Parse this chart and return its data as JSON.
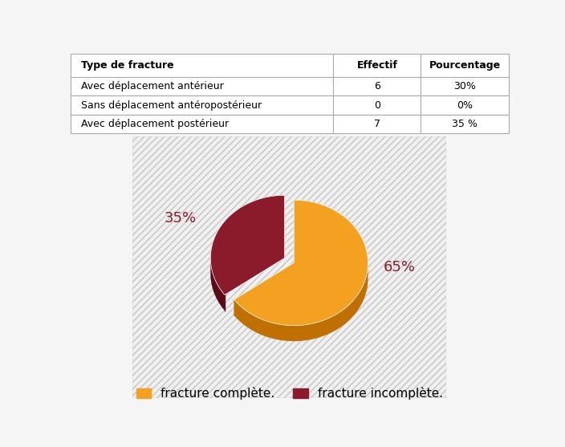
{
  "table": {
    "headers": [
      "Type de fracture",
      "Effectif",
      "Pourcentage"
    ],
    "rows": [
      [
        "Avec déplacement antérieur",
        "6",
        "30%"
      ],
      [
        "Sans déplacement antéropostérieur",
        "0",
        "0%"
      ],
      [
        "Avec déplacement postérieur",
        "7",
        "35 %"
      ]
    ]
  },
  "pie": {
    "values": [
      65,
      35
    ],
    "labels": [
      "fracture complète.",
      "fracture incomplète."
    ],
    "colors": [
      "#F4A020",
      "#8B1A2A"
    ],
    "dark_colors": [
      "#C07000",
      "#5A0A18"
    ],
    "explode_vec": [
      0.0,
      0.12
    ],
    "pct_labels": [
      "65%",
      "35%"
    ],
    "pct_color": "#8B1A2A",
    "pct_fontsize": 13,
    "startangle": 90
  },
  "bg_color": "#f0f0f0",
  "hatch_color": "#d8d8d8",
  "legend_fontsize": 11,
  "figsize": [
    7.04,
    5.57
  ],
  "dpi": 100
}
